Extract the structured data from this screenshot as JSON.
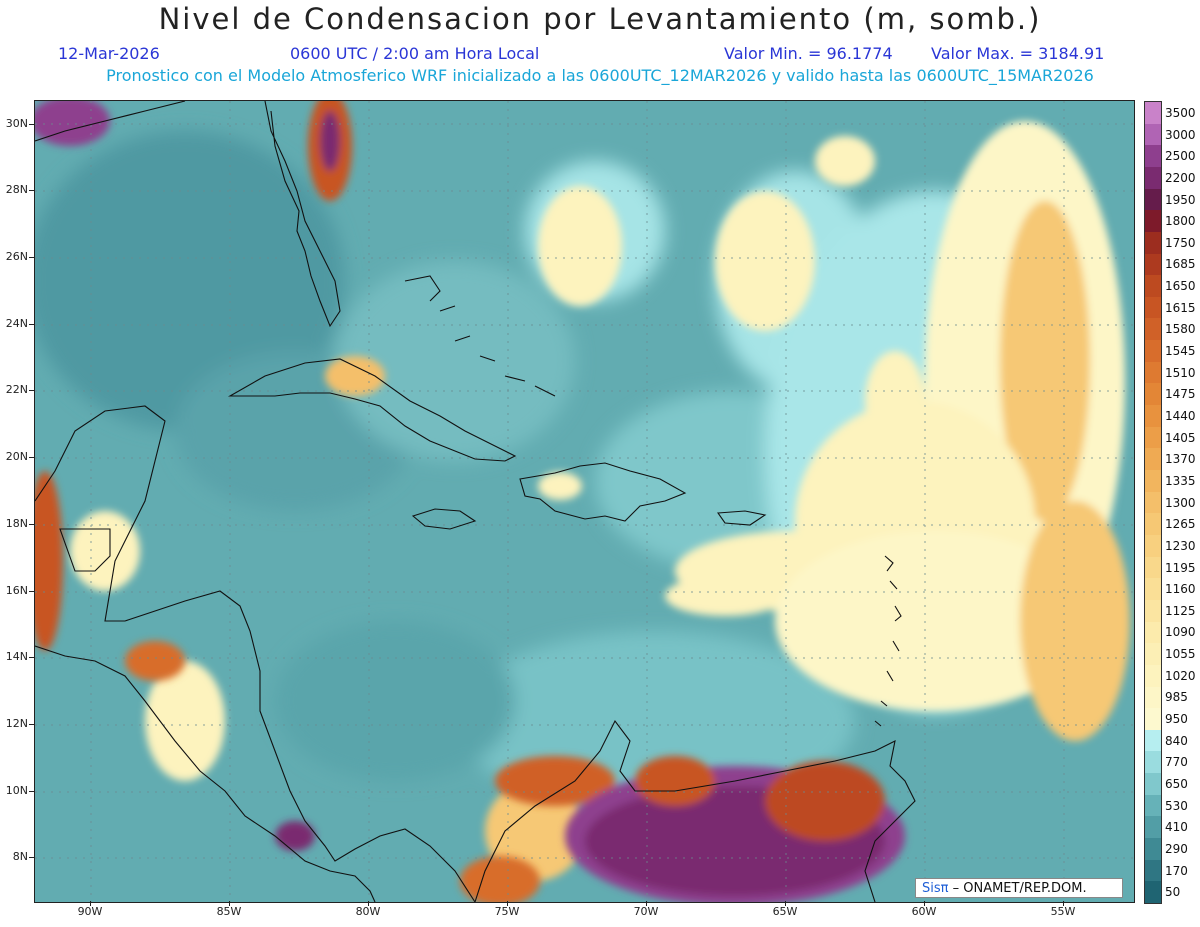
{
  "header": {
    "title": "Nivel de Condensacion por Levantamiento (m, somb.)",
    "date": "12-Mar-2026",
    "time": "0600 UTC / 2:00 am Hora Local",
    "min_label": "Valor Min. = 96.1774",
    "max_label": "Valor Max. = 3184.91",
    "forecast_line": "Pronostico con el Modelo Atmosferico WRF inicializado a las 0600UTC_12MAR2026 y valido hasta las  0600UTC_15MAR2026"
  },
  "map": {
    "lon_range": [
      -92,
      -52.5
    ],
    "lat_range": [
      6.9,
      30.7
    ],
    "lat_labels": [
      "30N",
      "28N",
      "26N",
      "24N",
      "22N",
      "20N",
      "18N",
      "16N",
      "14N",
      "12N",
      "10N",
      "8N"
    ],
    "lon_labels": [
      "90W",
      "85W",
      "80W",
      "75W",
      "70W",
      "65W",
      "60W",
      "55W"
    ],
    "background_color": "#5fa8ad",
    "coast_color": "#111111"
  },
  "colorbar": {
    "levels": [
      "3500",
      "3000",
      "2500",
      "2200",
      "1950",
      "1800",
      "1750",
      "1685",
      "1650",
      "1615",
      "1580",
      "1545",
      "1510",
      "1475",
      "1440",
      "1405",
      "1370",
      "1335",
      "1300",
      "1265",
      "1230",
      "1195",
      "1160",
      "1125",
      "1090",
      "1055",
      "1020",
      "985",
      "950",
      "840",
      "770",
      "650",
      "530",
      "410",
      "290",
      "170",
      "50"
    ],
    "colors": [
      "#c982c9",
      "#b064b4",
      "#8e3f8e",
      "#7a2b70",
      "#651c4b",
      "#7d1a2a",
      "#9c2d1f",
      "#ad3a1f",
      "#bd4a20",
      "#c85523",
      "#d06128",
      "#d86d2c",
      "#de7a31",
      "#e38636",
      "#e8923e",
      "#ec9e48",
      "#efaa53",
      "#f2b55e",
      "#f4bf6a",
      "#f6c874",
      "#f8d07f",
      "#f9d88b",
      "#fadf96",
      "#fbe5a1",
      "#fcebac",
      "#fcefb5",
      "#fdf3be",
      "#fdf6c7",
      "#fdf9cf",
      "#b6eef0",
      "#9adcdf",
      "#80c8cc",
      "#66b2b8",
      "#529ea6",
      "#3f8a94",
      "#2f7683",
      "#1f6472"
    ]
  },
  "credit": {
    "brand": "Sisπ",
    "text": " – ONAMET/REP.DOM."
  }
}
